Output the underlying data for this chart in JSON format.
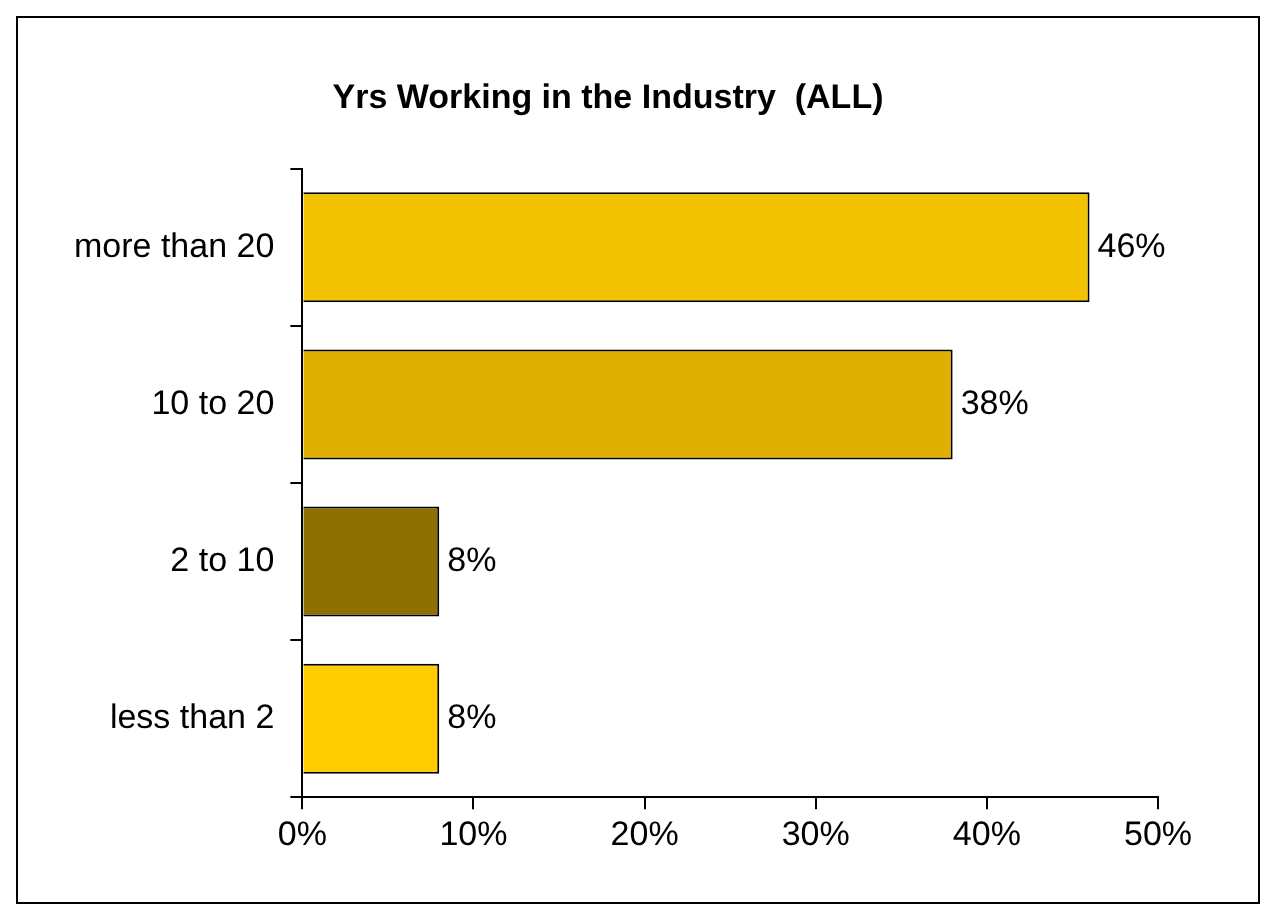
{
  "chart_data": {
    "type": "bar",
    "orientation": "horizontal",
    "title": "Yrs Working in the Industry  (ALL)",
    "categories": [
      "more than 20",
      "10 to 20",
      "2 to 10",
      "less than 2"
    ],
    "values": [
      46,
      38,
      8,
      8
    ],
    "colors": [
      "#f2c200",
      "#e0b000",
      "#8c7000",
      "#ffcc00"
    ],
    "value_labels": [
      "46%",
      "38%",
      "8%",
      "8%"
    ],
    "xlim": [
      0,
      50
    ],
    "xticks": [
      {
        "value": 0,
        "label": "0%"
      },
      {
        "value": 10,
        "label": "10%"
      },
      {
        "value": 20,
        "label": "20%"
      },
      {
        "value": 30,
        "label": "30%"
      },
      {
        "value": 40,
        "label": "40%"
      },
      {
        "value": 50,
        "label": "50%"
      }
    ],
    "grid": false,
    "legend": false
  }
}
